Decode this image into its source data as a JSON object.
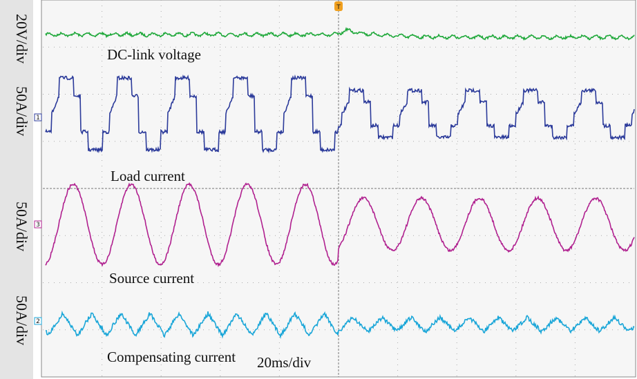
{
  "scales": {
    "ch_dc": "20V/div",
    "ch_load": "50A/div",
    "ch_source": "50A/div",
    "ch_comp": "50A/div",
    "time": "20ms/div"
  },
  "labels": {
    "dc": "DC-link voltage",
    "load": "Load current",
    "source": "Source current",
    "comp": "Compensating current"
  },
  "markers": {
    "ch1": "1",
    "ch3": "3",
    "ch2": "2",
    "trigger": "T"
  }
}
